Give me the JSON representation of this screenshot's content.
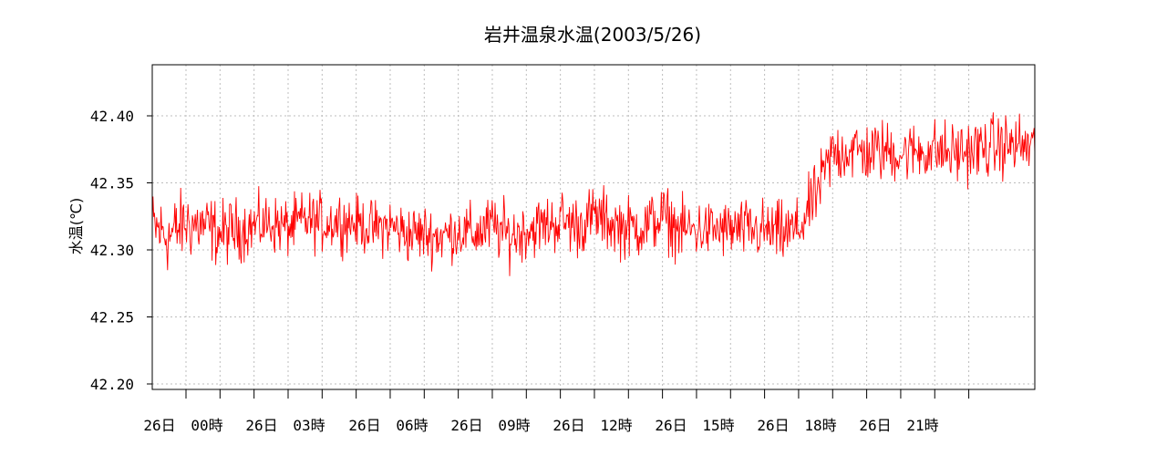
{
  "chart_data": {
    "type": "line",
    "title": "岩井温泉水温(2003/5/26)",
    "xlabel": "",
    "ylabel": "水温(℃)",
    "ylim": [
      42.2,
      42.43
    ],
    "yticks": [
      42.2,
      42.25,
      42.3,
      42.35,
      42.4
    ],
    "ytick_labels": [
      "42.20",
      "42.25",
      "42.30",
      "42.35",
      "42.40"
    ],
    "xlim": [
      -1.0,
      26.0
    ],
    "xticks": [
      0,
      1,
      2,
      3,
      4,
      5,
      6,
      7,
      8,
      9,
      10,
      11,
      12,
      13,
      14,
      15,
      16,
      17,
      18,
      19,
      20,
      21,
      22,
      23
    ],
    "xtick_labels": [
      {
        "text": "26日",
        "x": -0.5
      },
      {
        "text": "00時",
        "x": 0.5
      },
      {
        "text": "26日",
        "x": 2.5
      },
      {
        "text": "03時",
        "x": 3.5
      },
      {
        "text": "26日",
        "x": 5.5
      },
      {
        "text": "06時",
        "x": 6.5
      },
      {
        "text": "26日",
        "x": 8.5
      },
      {
        "text": "09時",
        "x": 9.5
      },
      {
        "text": "26日",
        "x": 11.5
      },
      {
        "text": "12時",
        "x": 12.5
      },
      {
        "text": "26日",
        "x": 14.5
      },
      {
        "text": "15時",
        "x": 15.5
      },
      {
        "text": "26日",
        "x": 17.5
      },
      {
        "text": "18時",
        "x": 18.5
      },
      {
        "text": "26日",
        "x": 20.5
      },
      {
        "text": "21時",
        "x": 21.5
      }
    ],
    "grid": true,
    "line_color": "#ff0000",
    "x_unit": "hour",
    "series": [
      {
        "x": [
          -1.0,
          -0.5,
          0.0,
          0.5,
          1.0,
          1.5,
          2.0,
          2.5,
          3.0,
          3.5,
          4.0,
          4.5,
          5.0,
          5.5,
          6.0,
          6.5,
          7.0,
          7.5,
          8.0,
          8.5,
          9.0,
          9.5,
          10.0,
          10.5,
          11.0,
          11.5,
          12.0,
          12.5,
          13.0,
          13.5,
          14.0,
          14.5,
          15.0,
          15.5,
          16.0,
          16.5,
          17.0,
          17.5,
          18.0,
          18.5,
          19.0,
          19.5,
          20.0,
          20.5,
          21.0,
          21.5,
          22.0,
          22.5,
          23.0,
          23.5,
          24.0,
          24.5,
          25.0,
          25.5,
          26.0
        ],
        "mean": [
          42.318,
          42.31,
          42.32,
          42.318,
          42.312,
          42.315,
          42.318,
          42.32,
          42.316,
          42.322,
          42.32,
          42.322,
          42.32,
          42.316,
          42.318,
          42.312,
          42.312,
          42.31,
          42.314,
          42.312,
          42.318,
          42.31,
          42.315,
          42.318,
          42.322,
          42.318,
          42.325,
          42.32,
          42.316,
          42.318,
          42.325,
          42.315,
          42.315,
          42.315,
          42.315,
          42.315,
          42.314,
          42.312,
          42.315,
          42.34,
          42.372,
          42.375,
          42.372,
          42.374,
          42.372,
          42.374,
          42.374,
          42.372,
          42.374,
          42.376,
          42.378,
          42.378,
          42.375,
          42.376,
          42.374
        ],
        "amplitude": [
          0.034,
          0.036,
          0.034,
          0.032,
          0.032,
          0.03,
          0.028,
          0.028,
          0.028,
          0.028,
          0.028,
          0.028,
          0.026,
          0.026,
          0.028,
          0.028,
          0.028,
          0.028,
          0.026,
          0.028,
          0.03,
          0.03,
          0.028,
          0.028,
          0.03,
          0.03,
          0.03,
          0.03,
          0.03,
          0.03,
          0.03,
          0.03,
          0.028,
          0.028,
          0.028,
          0.028,
          0.03,
          0.03,
          0.03,
          0.03,
          0.032,
          0.032,
          0.03,
          0.03,
          0.028,
          0.028,
          0.03,
          0.03,
          0.03,
          0.03,
          0.03,
          0.03,
          0.03,
          0.03,
          0.03
        ],
        "points_per_hour": 60
      }
    ]
  }
}
